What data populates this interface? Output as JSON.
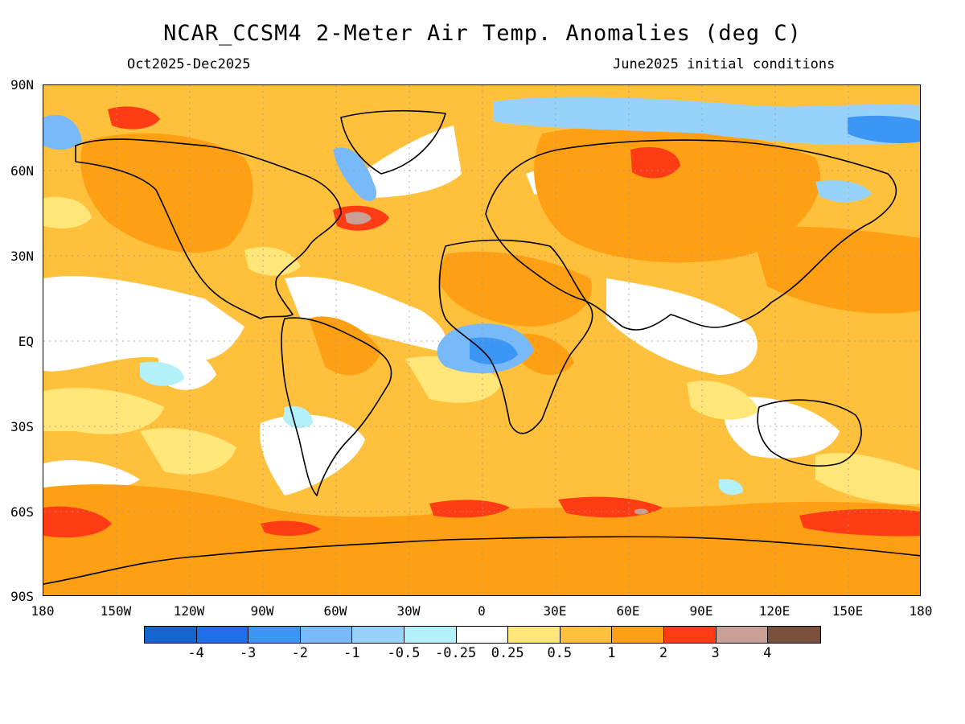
{
  "title": "NCAR_CCSM4 2-Meter Air Temp. Anomalies (deg C)",
  "subtitle_left": "Oct2025-Dec2025",
  "subtitle_right": "June2025 initial conditions",
  "lat_labels": [
    "90N",
    "60N",
    "30N",
    "EQ",
    "30S",
    "60S",
    "90S"
  ],
  "lon_labels": [
    "180",
    "150W",
    "120W",
    "90W",
    "60W",
    "30W",
    "0",
    "30E",
    "60E",
    "90E",
    "120E",
    "150E",
    "180"
  ],
  "colorbar": {
    "colors": [
      "#1464d2",
      "#1e6eeb",
      "#3c96f5",
      "#78b9fa",
      "#96d2fa",
      "#b4f0fa",
      "#ffffff",
      "#ffe678",
      "#ffc03c",
      "#ffa014",
      "#ff3c14",
      "#c8a096",
      "#78503c"
    ],
    "labels": [
      "-4",
      "-3",
      "-2",
      "-1",
      "-0.5",
      "-0.25",
      "0.25",
      "0.5",
      "1",
      "2",
      "3",
      "4"
    ]
  }
}
